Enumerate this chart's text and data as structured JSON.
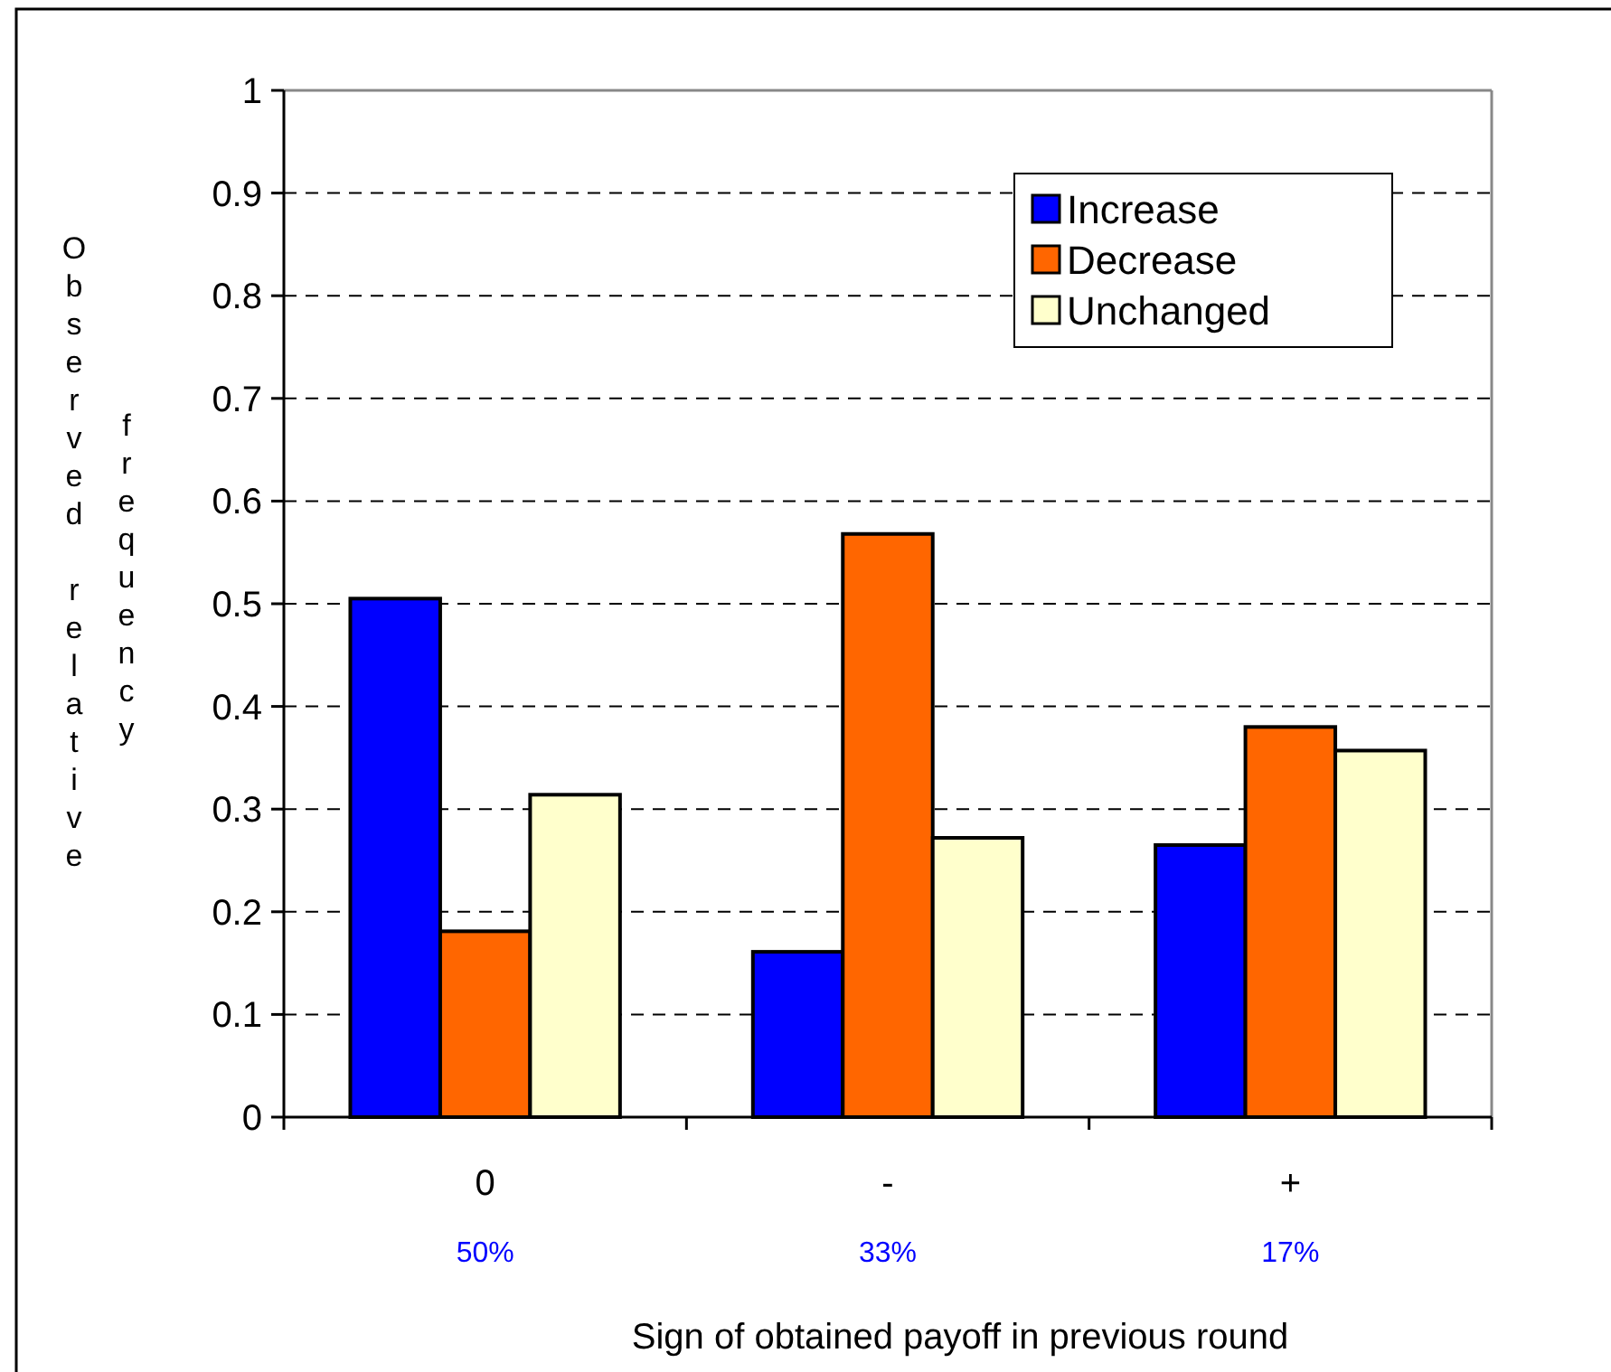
{
  "chart_data": {
    "type": "bar",
    "categories": [
      "0",
      "-",
      "+"
    ],
    "series": [
      {
        "name": "Increase",
        "color": "#0000ff",
        "values": [
          0.505,
          0.161,
          0.265
        ]
      },
      {
        "name": "Decrease",
        "color": "#ff6600",
        "values": [
          0.181,
          0.568,
          0.38
        ]
      },
      {
        "name": "Unchanged",
        "color": "#ffffcc",
        "values": [
          0.314,
          0.272,
          0.357
        ]
      }
    ],
    "xlabel": "Sign of obtained payoff in previous round",
    "ylabel": "Observed relative frequency",
    "ylim": [
      0,
      1
    ],
    "yticks": [
      0,
      0.1,
      0.2,
      0.3,
      0.4,
      0.5,
      0.6,
      0.7,
      0.8,
      0.9,
      1
    ],
    "grid": "y",
    "legend": "top right",
    "annotations": [
      "50%",
      "33%",
      "17%"
    ]
  }
}
